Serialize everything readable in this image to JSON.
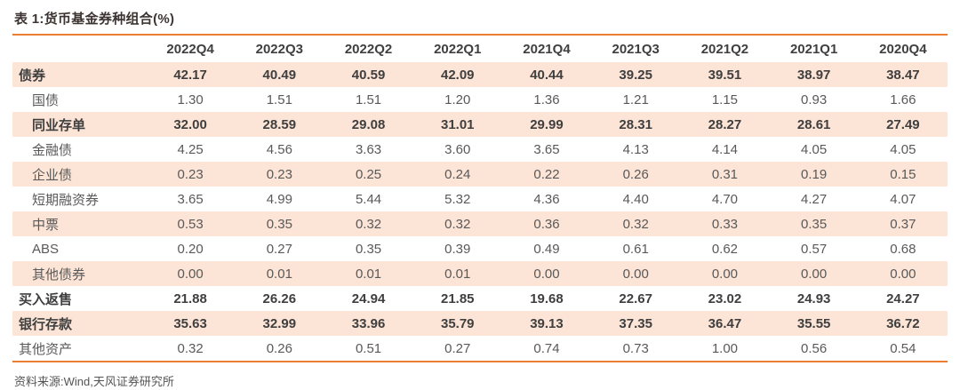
{
  "title": "表 1:货币基金券种组合(%)",
  "source_note": "资料来源:Wind,天风证券研究所",
  "colors": {
    "accent_line": "#ED7D31",
    "row_shading": "#FCE4D6",
    "text_bold": "#3F3F3F",
    "text_regular": "#595959"
  },
  "table": {
    "columns": [
      "",
      "2022Q4",
      "2022Q3",
      "2022Q2",
      "2022Q1",
      "2021Q4",
      "2021Q3",
      "2021Q2",
      "2021Q1",
      "2020Q4"
    ],
    "rows": [
      {
        "label": "债券",
        "bold": true,
        "indent": false,
        "shaded": true,
        "values": [
          "42.17",
          "40.49",
          "40.59",
          "42.09",
          "40.44",
          "39.25",
          "39.51",
          "38.97",
          "38.47"
        ]
      },
      {
        "label": "国债",
        "bold": false,
        "indent": true,
        "shaded": false,
        "values": [
          "1.30",
          "1.51",
          "1.51",
          "1.20",
          "1.36",
          "1.21",
          "1.15",
          "0.93",
          "1.66"
        ]
      },
      {
        "label": "同业存单",
        "bold": true,
        "indent": true,
        "shaded": true,
        "values": [
          "32.00",
          "28.59",
          "29.08",
          "31.01",
          "29.99",
          "28.31",
          "28.27",
          "28.61",
          "27.49"
        ]
      },
      {
        "label": "金融债",
        "bold": false,
        "indent": true,
        "shaded": false,
        "values": [
          "4.25",
          "4.56",
          "3.63",
          "3.60",
          "3.65",
          "4.13",
          "4.14",
          "4.05",
          "4.05"
        ]
      },
      {
        "label": "企业债",
        "bold": false,
        "indent": true,
        "shaded": true,
        "values": [
          "0.23",
          "0.23",
          "0.25",
          "0.24",
          "0.22",
          "0.26",
          "0.31",
          "0.19",
          "0.15"
        ]
      },
      {
        "label": "短期融资券",
        "bold": false,
        "indent": true,
        "shaded": false,
        "values": [
          "3.65",
          "4.99",
          "5.44",
          "5.32",
          "4.36",
          "4.40",
          "4.70",
          "4.27",
          "4.07"
        ]
      },
      {
        "label": "中票",
        "bold": false,
        "indent": true,
        "shaded": true,
        "values": [
          "0.53",
          "0.35",
          "0.32",
          "0.32",
          "0.36",
          "0.32",
          "0.33",
          "0.35",
          "0.37"
        ]
      },
      {
        "label": "ABS",
        "bold": false,
        "indent": true,
        "shaded": false,
        "values": [
          "0.20",
          "0.27",
          "0.35",
          "0.39",
          "0.49",
          "0.61",
          "0.62",
          "0.57",
          "0.68"
        ]
      },
      {
        "label": "其他债券",
        "bold": false,
        "indent": true,
        "shaded": true,
        "values": [
          "0.00",
          "0.01",
          "0.01",
          "0.01",
          "0.00",
          "0.00",
          "0.00",
          "0.00",
          "0.00"
        ]
      },
      {
        "label": "买入返售",
        "bold": true,
        "indent": false,
        "shaded": false,
        "values": [
          "21.88",
          "26.26",
          "24.94",
          "21.85",
          "19.68",
          "22.67",
          "23.02",
          "24.93",
          "24.27"
        ]
      },
      {
        "label": "银行存款",
        "bold": true,
        "indent": false,
        "shaded": true,
        "values": [
          "35.63",
          "32.99",
          "33.96",
          "35.79",
          "39.13",
          "37.35",
          "36.47",
          "35.55",
          "36.72"
        ]
      },
      {
        "label": "其他资产",
        "bold": false,
        "indent": false,
        "shaded": false,
        "values": [
          "0.32",
          "0.26",
          "0.51",
          "0.27",
          "0.74",
          "0.73",
          "1.00",
          "0.56",
          "0.54"
        ]
      }
    ]
  }
}
